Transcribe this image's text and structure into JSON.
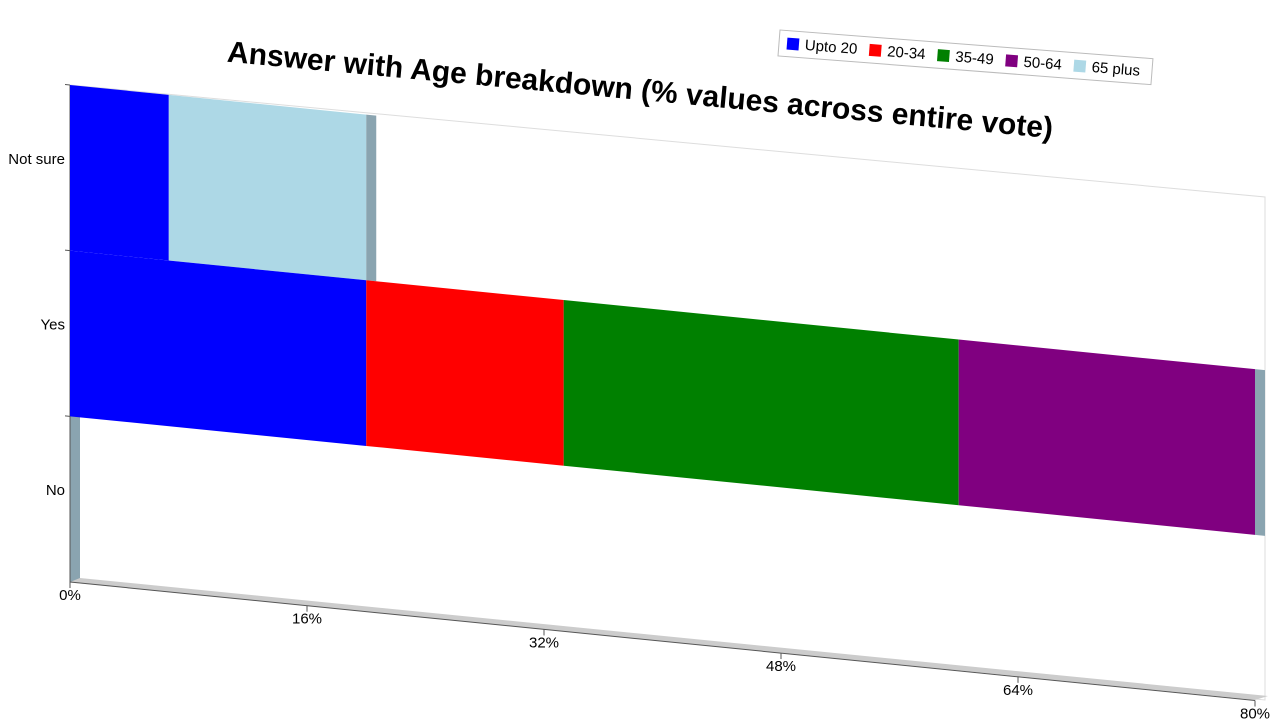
{
  "chart_data": {
    "type": "bar",
    "orientation": "horizontal",
    "stacked": true,
    "title": "Answer with Age breakdown (% values across entire vote)",
    "categories": [
      "Not sure",
      "Yes",
      "No"
    ],
    "series": [
      {
        "name": "Upto 20",
        "color": "#0000ff",
        "values": [
          6.67,
          20,
          0
        ]
      },
      {
        "name": "20-34",
        "color": "#ff0000",
        "values": [
          0,
          13.33,
          0
        ]
      },
      {
        "name": "35-49",
        "color": "#008000",
        "values": [
          0,
          26.67,
          0
        ]
      },
      {
        "name": "50-64",
        "color": "#800080",
        "values": [
          0,
          20,
          0
        ]
      },
      {
        "name": "65 plus",
        "color": "#add8e6",
        "values": [
          13.33,
          0,
          0
        ]
      }
    ],
    "xlim": [
      0,
      80
    ],
    "xticks": [
      {
        "value": 0,
        "label": "0%"
      },
      {
        "value": 16,
        "label": "16%"
      },
      {
        "value": 32,
        "label": "32%"
      },
      {
        "value": 48,
        "label": "48%"
      },
      {
        "value": 64,
        "label": "64%"
      },
      {
        "value": 80,
        "label": "80%"
      }
    ],
    "legend": "top-right"
  }
}
